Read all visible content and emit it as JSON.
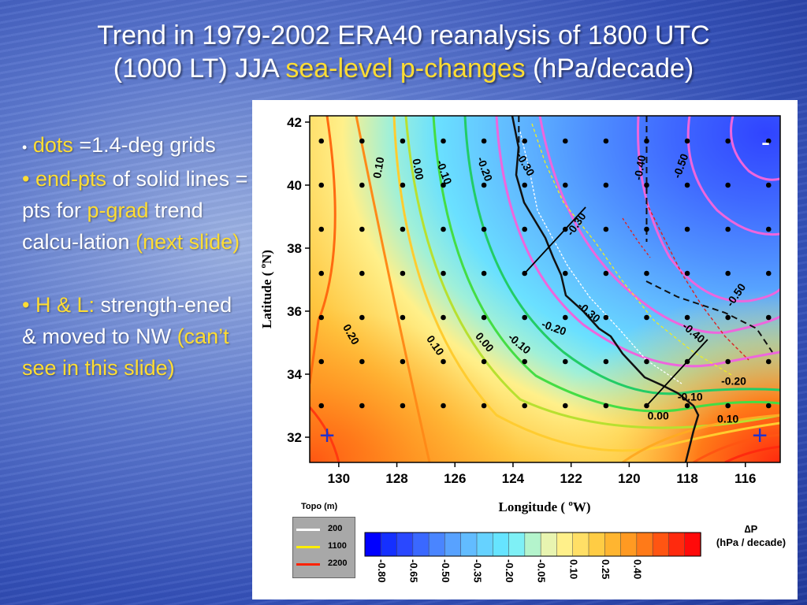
{
  "slide": {
    "title_line1": "Trend in 1979-2002 ERA40 reanalysis of 1800 UTC",
    "title_line2_pre": "(1000 LT) JJA ",
    "title_line2_hl": "sea-level p-changes",
    "title_line2_post": " (hPa/decade)",
    "bullet1_dot": "•",
    "bullet1_hl": "dots",
    "bullet1_text": " =1.4-deg grids",
    "bullet2_dot": "•",
    "bullet2_hl": "end-pts",
    "bullet2_text1": " of solid lines = pts for ",
    "bullet2_hl2": "p-grad",
    "bullet2_text2": " trend calcu-lation ",
    "bullet2_hl3": "(next slide)",
    "bullet3_hl": "• H & L:",
    "bullet3_text": " strength-ened & moved to NW ",
    "bullet3_hl2": "(can’t see in this slide)",
    "highlight_color": "#ffdd33"
  },
  "chart_data": {
    "type": "heatmap",
    "xlabel": "Longitude ( ",
    "xlabel_sup": "o",
    "xlabel_end": "W)",
    "ylabel": "Latitude ( ",
    "ylabel_sup": "o",
    "ylabel_end": "N)",
    "xlim": [
      131.0,
      114.8
    ],
    "ylim": [
      31.2,
      42.2
    ],
    "x_ticks": [
      130,
      128,
      126,
      124,
      122,
      120,
      118,
      116
    ],
    "y_ticks": [
      32,
      34,
      36,
      38,
      40,
      42
    ],
    "grid_dots_lon": [
      130.6,
      129.2,
      127.8,
      126.4,
      125.0,
      123.6,
      122.2,
      120.8,
      119.4,
      118.0,
      116.6,
      115.2
    ],
    "grid_dots_lat": [
      33.0,
      34.4,
      35.8,
      37.2,
      38.6,
      40.0,
      41.4
    ],
    "contour_labels": [
      {
        "text": "0.10",
        "lon": 128.6,
        "lat": 40.55,
        "rot": -80
      },
      {
        "text": "0.00",
        "lon": 127.3,
        "lat": 40.5,
        "rot": 80
      },
      {
        "text": "-0.10",
        "lon": 126.4,
        "lat": 40.4,
        "rot": 70
      },
      {
        "text": "-0.20",
        "lon": 125.0,
        "lat": 40.5,
        "rot": 70
      },
      {
        "text": "-0.30",
        "lon": 123.6,
        "lat": 40.65,
        "rot": 60
      },
      {
        "text": "-0.30",
        "lon": 121.8,
        "lat": 38.75,
        "rot": -55
      },
      {
        "text": "-0.40",
        "lon": 119.6,
        "lat": 40.55,
        "rot": -80
      },
      {
        "text": "-0.50",
        "lon": 118.2,
        "lat": 40.6,
        "rot": -70
      },
      {
        "text": "-0.30",
        "lon": 121.4,
        "lat": 35.95,
        "rot": 40
      },
      {
        "text": "-0.20",
        "lon": 122.6,
        "lat": 35.45,
        "rot": 20
      },
      {
        "text": "-0.10",
        "lon": 123.8,
        "lat": 34.95,
        "rot": 40
      },
      {
        "text": "0.00",
        "lon": 125.0,
        "lat": 35.0,
        "rot": 50
      },
      {
        "text": "0.10",
        "lon": 126.7,
        "lat": 34.9,
        "rot": 55
      },
      {
        "text": "0.20",
        "lon": 129.6,
        "lat": 35.25,
        "rot": 60
      },
      {
        "text": "-0.50",
        "lon": 116.3,
        "lat": 36.5,
        "rot": -55
      },
      {
        "text": "-0.40",
        "lon": 117.8,
        "lat": 35.3,
        "rot": 40
      },
      {
        "text": "-0.20",
        "lon": 116.4,
        "lat": 33.75,
        "rot": 0
      },
      {
        "text": "-0.10",
        "lon": 117.9,
        "lat": 33.25,
        "rot": 0
      },
      {
        "text": "0.00",
        "lon": 119.0,
        "lat": 32.65,
        "rot": 0
      },
      {
        "text": "0.10",
        "lon": 116.6,
        "lat": 32.55,
        "rot": 0
      }
    ],
    "high_low_markers": [
      {
        "sign": "-",
        "lon": 115.3,
        "lat": 41.3,
        "color": "#ffffff"
      },
      {
        "sign": "+",
        "lon": 130.4,
        "lat": 32.0,
        "color": "#2233cc"
      },
      {
        "sign": "+",
        "lon": 115.5,
        "lat": 32.0,
        "color": "#2233cc"
      }
    ],
    "colorbar": {
      "colors": [
        "#0000ff",
        "#1530ff",
        "#2a48ff",
        "#3a68ff",
        "#4a85ff",
        "#58a2ff",
        "#62bcff",
        "#66d2ff",
        "#66e4ff",
        "#7ef0f6",
        "#b4f4cc",
        "#e8f4b0",
        "#fff08a",
        "#ffdf66",
        "#ffcc44",
        "#ffb530",
        "#ff9a22",
        "#ff7a18",
        "#ff5512",
        "#ff2a0e",
        "#ff0a0a"
      ],
      "tick_labels": [
        "-0.80",
        "-0.65",
        "-0.50",
        "-0.35",
        "-0.20",
        "-0.05",
        "0.10",
        "0.25",
        "0.40"
      ],
      "title_symbol": "∆P",
      "title_units": "(hPa / decade)"
    },
    "topo_legend": {
      "title": "Topo (m)",
      "entries": [
        {
          "label": "200",
          "color": "#ffffff"
        },
        {
          "label": "1100",
          "color": "#ffee00"
        },
        {
          "label": "2200",
          "color": "#ff2200"
        }
      ]
    },
    "trend_lines": [
      {
        "lon1": 123.6,
        "lat1": 37.2,
        "lon2": 121.5,
        "lat2": 39.3
      },
      {
        "lon1": 119.4,
        "lat1": 33.0,
        "lon2": 117.3,
        "lat2": 35.1
      }
    ],
    "dashed_boxes": [
      {
        "lon1": 123.8,
        "lat1": 42.2,
        "lon2": 123.8,
        "lat2": 41.0
      },
      {
        "lon1": 119.4,
        "lat1": 42.2,
        "lon2": 119.4,
        "lat2": 38.2
      }
    ]
  }
}
